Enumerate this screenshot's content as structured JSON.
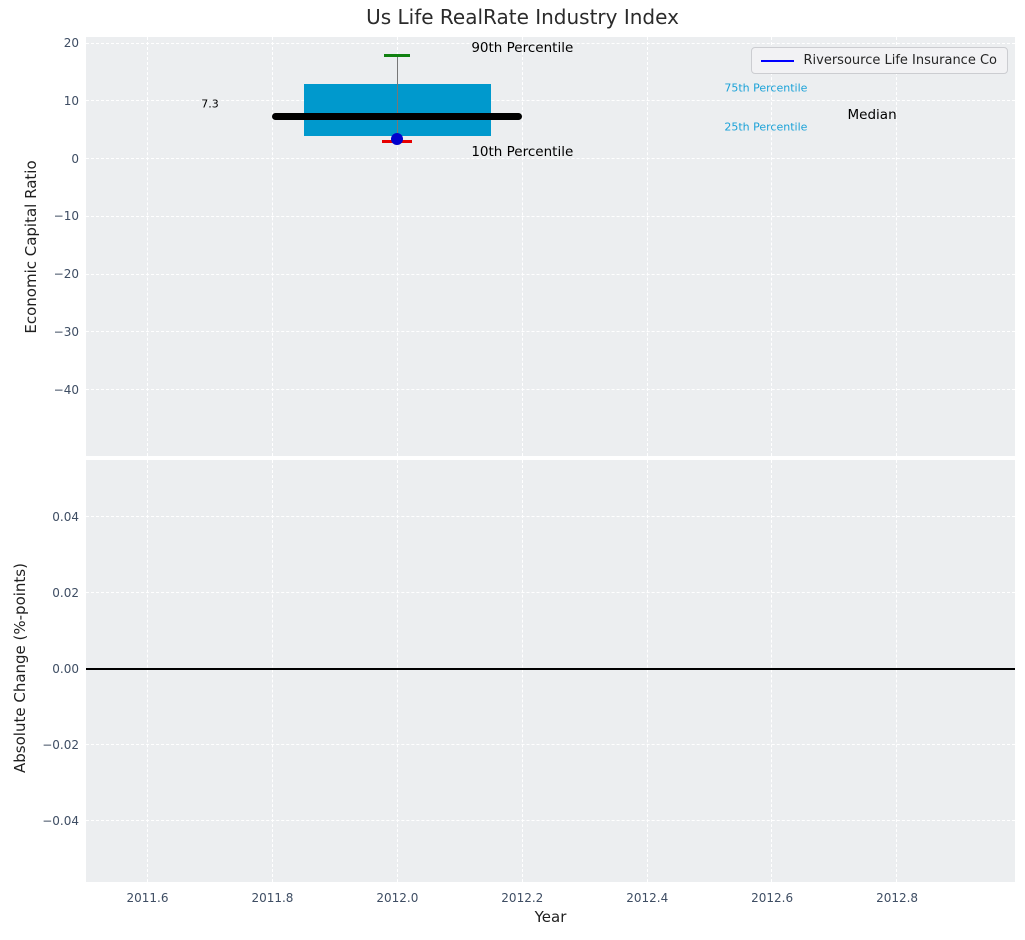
{
  "colors": {
    "axes_bg": "#eceef0",
    "grid": "#ffffff",
    "box_fill": "#0099cd",
    "percentile_label": "#1ba2d8",
    "whisker": "#777777",
    "cap_top": "#108010",
    "cap_bottom": "#e60000",
    "company_dot": "#0000cc",
    "median_line": "#000000",
    "legend_line": "#0000ff",
    "zero_line": "#000000",
    "tick_text": "#3e4d63"
  },
  "chart_data": [
    {
      "type": "boxplot",
      "title": "Us Life RealRate Industry Index",
      "ylabel": "Economic Capital Ratio",
      "xlim": [
        2011.5015,
        2012.9888
      ],
      "ylim": [
        -51.5,
        21.1
      ],
      "grid": "white dashed, on",
      "xtick_values": [
        2011.6,
        2011.8,
        2012.0,
        2012.2,
        2012.4,
        2012.6,
        2012.8
      ],
      "xtick_labels": [],
      "ytick_values": [
        20,
        10,
        0,
        -10,
        -20,
        -30,
        -40
      ],
      "ytick_labels": [
        "20",
        "10",
        "0",
        "−10",
        "−20",
        "−30",
        "−40"
      ],
      "box": {
        "x": 2012.0,
        "p90": 17.9,
        "p75": 13.0,
        "median": 7.3,
        "p25": 3.9,
        "p10": 3.0,
        "box_left": 2011.85,
        "box_right": 2012.15,
        "median_left": 2011.8,
        "median_right": 2012.2
      },
      "company_point": {
        "name": "Riversource Life Insurance Co",
        "x": 2012.0,
        "y": 3.5
      },
      "legend": {
        "position": "upper right",
        "entries": [
          {
            "label": "Riversource Life Insurance Co",
            "color": "#0000ff"
          }
        ]
      },
      "annotations": [
        {
          "text": "90th Percentile",
          "x": 2012.2,
          "y": 19.2,
          "color": "#000000",
          "size": 13.5
        },
        {
          "text": "10th Percentile",
          "x": 2012.2,
          "y": 1.1,
          "color": "#000000",
          "size": 13.5
        },
        {
          "text": "75th Percentile",
          "x": 2012.59,
          "y": 12.25,
          "color": "#1ba2d8",
          "size": 11
        },
        {
          "text": "25th Percentile",
          "x": 2012.59,
          "y": 5.5,
          "color": "#1ba2d8",
          "size": 11
        },
        {
          "text": "Median",
          "x": 2012.76,
          "y": 7.6,
          "color": "#000000",
          "size": 13.5
        },
        {
          "text": "7.3",
          "x": 2011.7,
          "y": 9.5,
          "color": "#000000",
          "size": 11
        }
      ]
    },
    {
      "type": "line",
      "ylabel": "Absolute Change (%-points)",
      "xlabel": "Year",
      "xlim": [
        2011.5015,
        2012.9888
      ],
      "ylim": [
        -0.056,
        0.055
      ],
      "grid": "white dashed, on",
      "xtick_values": [
        2011.6,
        2011.8,
        2012.0,
        2012.2,
        2012.4,
        2012.6,
        2012.8
      ],
      "xtick_labels": [
        "2011.6",
        "2011.8",
        "2012.0",
        "2012.2",
        "2012.4",
        "2012.6",
        "2012.8"
      ],
      "ytick_values": [
        0.04,
        0.02,
        0.0,
        -0.02,
        -0.04
      ],
      "ytick_labels": [
        "0.04",
        "0.02",
        "0.00",
        "−0.02",
        "−0.04"
      ],
      "zero_line_y": 0.0,
      "series": []
    }
  ]
}
